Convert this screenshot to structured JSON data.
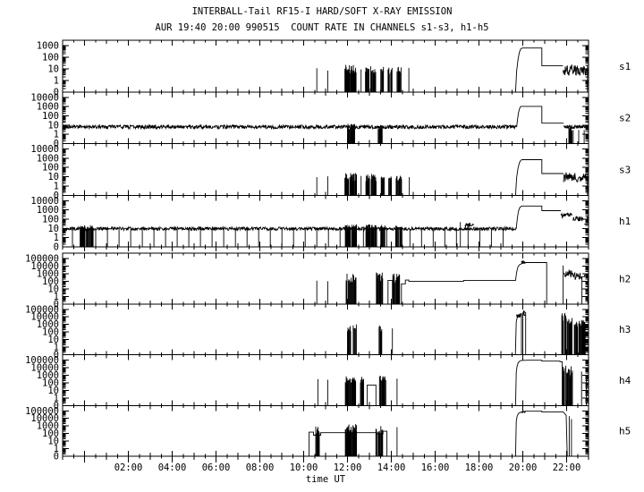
{
  "colors": {
    "trace": "#000000",
    "background": "#ffffff"
  },
  "chart_data": {
    "type": "line",
    "title": "INTERBALL-Tail RF15-I HARD/SOFT X-RAY EMISSION",
    "subtitle": "AUR 19:40 20:00 990515  COUNT RATE IN CHANNELS s1-s3, h1-h5",
    "xlabel": "time UT",
    "x_range_hours": [
      -1,
      23
    ],
    "x_ticks": [
      {
        "t": 2,
        "label": "02:00"
      },
      {
        "t": 4,
        "label": "04:00"
      },
      {
        "t": 6,
        "label": "06:00"
      },
      {
        "t": 8,
        "label": "08:00"
      },
      {
        "t": 10,
        "label": "10:00"
      },
      {
        "t": 12,
        "label": "12:00"
      },
      {
        "t": 14,
        "label": "14:00"
      },
      {
        "t": 16,
        "label": "16:00"
      },
      {
        "t": 18,
        "label": "18:00"
      },
      {
        "t": 20,
        "label": "20:00"
      },
      {
        "t": 22,
        "label": "22:00"
      }
    ],
    "y_scale": "logarithmic count rate with 0 baseline",
    "panels": [
      {
        "label": "s1",
        "decades": 3,
        "ytick_labels": [
          "1000",
          "100",
          "10",
          "1",
          "0"
        ],
        "lines": [
          [
            [
              19.67,
              0
            ],
            [
              19.72,
              6
            ],
            [
              19.78,
              60
            ],
            [
              19.84,
              250
            ],
            [
              19.9,
              500
            ],
            [
              19.97,
              620
            ],
            [
              20.87,
              620
            ],
            [
              20.87,
              18
            ],
            [
              21.83,
              18
            ]
          ]
        ],
        "spikes": [
          [
            10.6,
            11
          ],
          [
            11.1,
            7
          ],
          [
            12.62,
            9
          ],
          [
            14.8,
            12
          ],
          [
            22.95,
            18
          ]
        ],
        "clusters": [
          {
            "t0": 11.88,
            "t1": 12.4,
            "lo": 3,
            "hi": 22
          },
          {
            "t0": 12.82,
            "t1": 13.0,
            "lo": 3,
            "hi": 16
          },
          {
            "t0": 13.06,
            "t1": 13.3,
            "lo": 3,
            "hi": 18
          },
          {
            "t0": 13.52,
            "t1": 13.66,
            "lo": 4,
            "hi": 16
          },
          {
            "t0": 13.85,
            "t1": 14.05,
            "lo": 3,
            "hi": 14
          },
          {
            "t0": 14.2,
            "t1": 14.45,
            "lo": 4,
            "hi": 15
          }
        ],
        "noise": [
          {
            "t0": 21.83,
            "t1": 22.88,
            "lo": 2.5,
            "hi": 22
          }
        ]
      },
      {
        "label": "s2",
        "decades": 4,
        "ytick_labels": [
          "10000",
          "1000",
          "100",
          "10",
          "1",
          "0"
        ],
        "lines": [
          [
            [
              19.72,
              6
            ],
            [
              19.76,
              40
            ],
            [
              19.8,
              200
            ],
            [
              19.86,
              700
            ],
            [
              19.91,
              1050
            ],
            [
              20.87,
              1050
            ],
            [
              20.87,
              16
            ],
            [
              21.86,
              16
            ]
          ]
        ],
        "spikes": [
          [
            22.3,
            3
          ],
          [
            22.55,
            3
          ],
          [
            22.8,
            3
          ]
        ],
        "clusters": [
          {
            "t0": 12.0,
            "t1": 12.35,
            "lo": 3,
            "hi": 14
          },
          {
            "t0": 13.4,
            "t1": 13.6,
            "lo": 3,
            "hi": 13
          },
          {
            "t0": 22.1,
            "t1": 22.25,
            "lo": 2,
            "hi": 11
          }
        ],
        "noise": [
          {
            "t0": -1,
            "t1": 19.72,
            "lo": 4,
            "hi": 10
          },
          {
            "t0": 21.86,
            "t1": 23.0,
            "lo": 4,
            "hi": 10
          }
        ]
      },
      {
        "label": "s3",
        "decades": 4,
        "ytick_labels": [
          "10000",
          "1000",
          "100",
          "10",
          "1",
          "0"
        ],
        "lines": [
          [
            [
              19.67,
              0
            ],
            [
              19.72,
              8
            ],
            [
              19.78,
              80
            ],
            [
              19.85,
              350
            ],
            [
              19.92,
              620
            ],
            [
              19.98,
              700
            ],
            [
              20.87,
              700
            ],
            [
              20.87,
              22
            ],
            [
              21.86,
              22
            ]
          ]
        ],
        "spikes": [
          [
            10.6,
            9
          ],
          [
            11.1,
            11
          ],
          [
            12.62,
            12
          ],
          [
            14.82,
            9
          ],
          [
            22.95,
            24
          ]
        ],
        "clusters": [
          {
            "t0": 11.88,
            "t1": 12.42,
            "lo": 3,
            "hi": 26
          },
          {
            "t0": 12.84,
            "t1": 13.02,
            "lo": 3,
            "hi": 18
          },
          {
            "t0": 13.08,
            "t1": 13.34,
            "lo": 3,
            "hi": 20
          },
          {
            "t0": 13.54,
            "t1": 13.7,
            "lo": 4,
            "hi": 18
          },
          {
            "t0": 13.88,
            "t1": 14.06,
            "lo": 3,
            "hi": 11
          },
          {
            "t0": 14.22,
            "t1": 14.48,
            "lo": 4,
            "hi": 14
          }
        ],
        "noise": [
          {
            "t0": 21.86,
            "t1": 22.9,
            "lo": 2.5,
            "hi": 28
          }
        ]
      },
      {
        "label": "h1",
        "decades": 4,
        "ytick_labels": [
          "10000",
          "1000",
          "100",
          "10",
          "1",
          "0"
        ],
        "lines": [
          [
            [
              19.7,
              10
            ],
            [
              19.75,
              120
            ],
            [
              19.8,
              700
            ],
            [
              19.87,
              1900
            ],
            [
              19.95,
              2600
            ],
            [
              20.87,
              2600
            ],
            [
              20.87,
              820
            ],
            [
              21.73,
              820
            ]
          ],
          [
            [
              22.8,
              28
            ],
            [
              22.92,
              28
            ]
          ]
        ],
        "spikes": [
          [
            17.15,
            48
          ]
        ],
        "clusters": [
          {
            "t0": -0.2,
            "t1": 0.4,
            "lo": 8,
            "hi": 22
          },
          {
            "t0": 11.88,
            "t1": 12.42,
            "lo": 8,
            "hi": 28
          },
          {
            "t0": 12.84,
            "t1": 13.34,
            "lo": 8,
            "hi": 26
          },
          {
            "t0": 13.52,
            "t1": 13.72,
            "lo": 8,
            "hi": 24
          },
          {
            "t0": 14.2,
            "t1": 14.5,
            "lo": 8,
            "hi": 22
          }
        ],
        "noise": [
          {
            "t0": -1,
            "t1": 19.7,
            "lo": 6,
            "hi": 14
          },
          {
            "t0": 17.35,
            "t1": 17.78,
            "lo": 14,
            "hi": 34
          },
          {
            "t0": 21.73,
            "t1": 22.28,
            "lo": 140,
            "hi": 450
          },
          {
            "t0": 22.28,
            "t1": 22.8,
            "lo": 55,
            "hi": 200
          },
          {
            "t0": 22.92,
            "t1": 23.0,
            "lo": 40,
            "hi": 260
          }
        ],
        "dropouts": {
          "t0": -0.55,
          "t1": 19.55,
          "dt": 0.531,
          "v": 9
        }
      },
      {
        "label": "h2",
        "decades": 5,
        "ytick_labels": [
          "100000",
          "10000",
          "1000",
          "100",
          "10",
          "1",
          "0"
        ],
        "lines": [
          [
            [
              13.85,
              0
            ],
            [
              13.85,
              130
            ],
            [
              14.05,
              130
            ],
            [
              14.05,
              0
            ]
          ],
          [
            [
              14.46,
              0
            ],
            [
              14.46,
              45
            ],
            [
              14.64,
              45
            ],
            [
              14.64,
              140
            ],
            [
              14.8,
              140
            ],
            [
              14.8,
              100
            ],
            [
              17.3,
              100
            ],
            [
              17.3,
              130
            ],
            [
              19.67,
              130
            ],
            [
              19.72,
              1500
            ],
            [
              19.78,
              8000
            ],
            [
              19.86,
              16000
            ],
            [
              19.95,
              21000
            ],
            [
              20.15,
              29000
            ],
            [
              21.09,
              29000
            ],
            [
              21.09,
              0
            ]
          ],
          [
            [
              22.7,
              0
            ],
            [
              22.7,
              400
            ],
            [
              22.82,
              400
            ],
            [
              22.82,
              650
            ],
            [
              22.97,
              650
            ],
            [
              22.97,
              0
            ]
          ]
        ],
        "spikes": [
          [
            10.6,
            120
          ],
          [
            11.1,
            100
          ],
          [
            21.84,
            12000
          ]
        ],
        "clusters": [
          {
            "t0": 11.94,
            "t1": 12.42,
            "lo": 60,
            "hi": 1200
          },
          {
            "t0": 13.3,
            "t1": 13.62,
            "lo": 60,
            "hi": 1400
          },
          {
            "t0": 14.05,
            "t1": 14.38,
            "lo": 60,
            "hi": 1400
          }
        ],
        "noise": [
          {
            "t0": 19.93,
            "t1": 20.12,
            "lo": 14000,
            "hi": 58000
          },
          {
            "t0": 21.87,
            "t1": 22.3,
            "lo": 350,
            "hi": 3500
          },
          {
            "t0": 22.3,
            "t1": 22.7,
            "lo": 150,
            "hi": 1300
          }
        ]
      },
      {
        "label": "h3",
        "decades": 5,
        "ytick_labels": [
          "100000",
          "10000",
          "1000",
          "100",
          "10",
          "1",
          "0"
        ],
        "lines": [
          [
            [
              19.66,
              0
            ],
            [
              19.7,
              2500
            ],
            [
              19.75,
              9000
            ],
            [
              19.82,
              18000
            ],
            [
              19.9,
              26000
            ],
            [
              19.94,
              26000
            ],
            [
              19.94,
              0
            ]
          ],
          [
            [
              20.0,
              0
            ],
            [
              20.0,
              28000
            ],
            [
              20.05,
              62000
            ],
            [
              20.1,
              38000
            ],
            [
              20.13,
              38000
            ],
            [
              20.13,
              0
            ]
          ]
        ],
        "spikes": [
          [
            14.05,
            300
          ]
        ],
        "clusters": [
          {
            "t0": 12.0,
            "t1": 12.18,
            "lo": 90,
            "hi": 900
          },
          {
            "t0": 12.22,
            "t1": 12.42,
            "lo": 90,
            "hi": 1000
          },
          {
            "t0": 13.44,
            "t1": 13.58,
            "lo": 90,
            "hi": 800
          },
          {
            "t0": 21.78,
            "t1": 22.0,
            "lo": 2500,
            "hi": 33000
          },
          {
            "t0": 22.02,
            "t1": 22.25,
            "lo": 700,
            "hi": 8000
          },
          {
            "t0": 22.35,
            "t1": 22.62,
            "lo": 500,
            "hi": 5000
          },
          {
            "t0": 22.62,
            "t1": 22.85,
            "lo": 700,
            "hi": 4200
          }
        ],
        "noise": [
          {
            "t0": 19.72,
            "t1": 19.94,
            "lo": 8000,
            "hi": 27000
          },
          {
            "t0": 20.0,
            "t1": 20.12,
            "lo": 14000,
            "hi": 64000
          }
        ]
      },
      {
        "label": "h4",
        "decades": 5,
        "ytick_labels": [
          "100000",
          "10000",
          "1000",
          "100",
          "10",
          "1",
          "0"
        ],
        "lines": [
          [
            [
              12.9,
              0
            ],
            [
              12.9,
              50
            ],
            [
              13.3,
              50
            ],
            [
              13.3,
              0
            ]
          ],
          [
            [
              19.67,
              0
            ],
            [
              19.7,
              2500
            ],
            [
              19.74,
              15000
            ],
            [
              19.79,
              45000
            ],
            [
              19.86,
              75000
            ],
            [
              19.94,
              90000
            ],
            [
              20.2,
              95000
            ],
            [
              20.87,
              95000
            ],
            [
              20.87,
              72000
            ],
            [
              21.7,
              72000
            ],
            [
              21.7,
              62000
            ],
            [
              21.8,
              62000
            ],
            [
              21.8,
              0
            ]
          ]
        ],
        "spikes": [
          [
            10.65,
            300
          ],
          [
            11.1,
            250
          ],
          [
            14.26,
            350
          ],
          [
            22.68,
            3000
          ],
          [
            22.9,
            700
          ]
        ],
        "clusters": [
          {
            "t0": 11.9,
            "t1": 12.4,
            "lo": 100,
            "hi": 900
          },
          {
            "t0": 12.55,
            "t1": 12.75,
            "lo": 100,
            "hi": 800
          },
          {
            "t0": 13.44,
            "t1": 13.77,
            "lo": 150,
            "hi": 1000
          },
          {
            "t0": 21.82,
            "t1": 22.02,
            "lo": 1500,
            "hi": 40000
          },
          {
            "t0": 22.02,
            "t1": 22.3,
            "lo": 300,
            "hi": 15000
          }
        ],
        "noise": []
      },
      {
        "label": "h5",
        "decades": 5,
        "ytick_labels": [
          "100000",
          "10000",
          "1000",
          "100",
          "10",
          "1",
          "0"
        ],
        "lines": [
          [
            [
              10.25,
              0
            ],
            [
              10.25,
              150
            ],
            [
              10.45,
              150
            ],
            [
              10.45,
              60
            ],
            [
              10.78,
              60
            ],
            [
              10.78,
              130
            ],
            [
              13.3,
              130
            ],
            [
              13.3,
              90
            ],
            [
              13.62,
              90
            ],
            [
              13.62,
              200
            ],
            [
              13.8,
              200
            ],
            [
              13.8,
              0
            ]
          ],
          [
            [
              19.67,
              0
            ],
            [
              19.7,
              4000
            ],
            [
              19.74,
              18000
            ],
            [
              19.8,
              45000
            ],
            [
              19.88,
              62000
            ],
            [
              20.0,
              70000
            ],
            [
              20.12,
              88000
            ],
            [
              20.87,
              88000
            ],
            [
              20.87,
              70000
            ],
            [
              21.85,
              70000
            ],
            [
              21.98,
              25000
            ],
            [
              22.03,
              0
            ]
          ]
        ],
        "spikes": [
          [
            14.26,
            700
          ],
          [
            22.12,
            20000
          ],
          [
            22.22,
            8000
          ]
        ],
        "clusters": [
          {
            "t0": 10.55,
            "t1": 10.72,
            "lo": 100,
            "hi": 900
          },
          {
            "t0": 11.88,
            "t1": 12.42,
            "lo": 100,
            "hi": 2200
          },
          {
            "t0": 13.3,
            "t1": 13.62,
            "lo": 100,
            "hi": 1000
          }
        ],
        "noise": [
          {
            "t0": 19.93,
            "t1": 20.12,
            "lo": 40000,
            "hi": 92000
          }
        ]
      }
    ]
  }
}
